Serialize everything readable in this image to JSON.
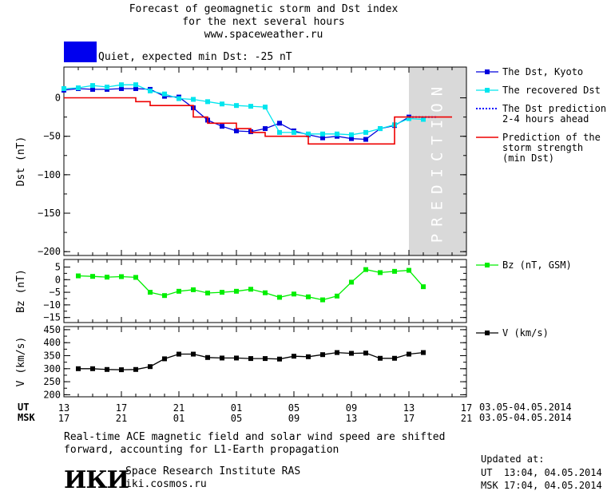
{
  "header": {
    "title_line1": "Forecast of geomagnetic storm and Dst index",
    "title_line2": "for the next several hours",
    "site": "www.spaceweather.ru",
    "status_text": "Quiet, expected min Dst: -25 nT",
    "status_color": "#0000ee"
  },
  "footer": {
    "note_line1": "Real-time ACE magnetic field and solar wind speed are shifted",
    "note_line2": "forward, accounting for L1-Earth propagation",
    "logo_text": "ИКИ",
    "institute": "Space Research Institute RAS",
    "institute_url": "iki.cosmos.ru",
    "updated_label": "Updated at:",
    "updated_ut": "UT  13:04, 04.05.2014",
    "updated_msk": "MSK 17:04, 04.05.2014"
  },
  "time_axis": {
    "ut_label": "UT",
    "msk_label": "MSK",
    "ut_ticks": [
      "13",
      "17",
      "21",
      "01",
      "05",
      "09",
      "13",
      "17"
    ],
    "msk_ticks": [
      "17",
      "21",
      "01",
      "05",
      "09",
      "13",
      "17",
      "21"
    ],
    "date_range": "03.05-04.05.2014",
    "hours_start": 0,
    "hours_end": 28
  },
  "chart_data": [
    {
      "type": "line",
      "panel": "dst",
      "ylabel": "Dst (nT)",
      "ylim": [
        -205,
        40
      ],
      "yticks": [
        0,
        -50,
        -100,
        -150,
        -200
      ],
      "prediction_label": "PREDICTION",
      "prediction_from_hour": 24,
      "series": [
        {
          "name": "The Dst, Kyoto",
          "color": "#0000dd",
          "marker": "square",
          "x": [
            0,
            1,
            2,
            3,
            4,
            5,
            6,
            7,
            8,
            9,
            10,
            11,
            12,
            13,
            14,
            15,
            16,
            17,
            18,
            19,
            20,
            21,
            22,
            23,
            24
          ],
          "y": [
            10,
            12,
            11,
            11,
            12,
            12,
            11,
            2,
            1,
            -13,
            -29,
            -37,
            -43,
            -44,
            -40,
            -33,
            -43,
            -48,
            -52,
            -50,
            -53,
            -54,
            -40,
            -36,
            -25
          ]
        },
        {
          "name": "The recovered Dst",
          "color": "#00e5ee",
          "marker": "square",
          "x": [
            0,
            1,
            2,
            3,
            4,
            5,
            6,
            7,
            8,
            9,
            10,
            11,
            12,
            13,
            14,
            15,
            16,
            17,
            18,
            19,
            20,
            21,
            22,
            23,
            24,
            25
          ],
          "y": [
            12,
            13,
            16,
            14,
            17,
            17,
            9,
            5,
            -1,
            -2,
            -5,
            -8,
            -10,
            -11,
            -12,
            -45,
            -45,
            -47,
            -47,
            -47,
            -48,
            -45,
            -40,
            -35,
            -27,
            -28
          ]
        },
        {
          "name": "The Dst prediction\n2-4 hours ahead",
          "color": "#0000ff",
          "style": "dotted",
          "x": [
            24,
            25,
            26
          ],
          "y": [
            -25,
            -25,
            -25
          ]
        },
        {
          "name": "Prediction of the\nstorm strength\n(min Dst)",
          "color": "#ee0000",
          "style": "step",
          "x": [
            0,
            4,
            5,
            6,
            8,
            9,
            10,
            12,
            13,
            14,
            15,
            17,
            20,
            21,
            22,
            23,
            24,
            27
          ],
          "y": [
            0,
            0,
            -5,
            -10,
            -10,
            -25,
            -33,
            -40,
            -45,
            -50,
            -50,
            -60,
            -60,
            -60,
            -60,
            -25,
            -25,
            -25
          ]
        }
      ]
    },
    {
      "type": "line",
      "panel": "bz",
      "ylabel": "Bz (nT)",
      "ylim": [
        -17,
        8
      ],
      "yticks": [
        5,
        0,
        -5,
        -10,
        -15
      ],
      "series": [
        {
          "name": "Bz (nT, GSM)",
          "color": "#00ee00",
          "marker": "square",
          "x": [
            1,
            2,
            3,
            4,
            5,
            6,
            7,
            8,
            9,
            10,
            11,
            12,
            13,
            14,
            15,
            16,
            17,
            18,
            19,
            20,
            21,
            22,
            23,
            24,
            25
          ],
          "y": [
            1.5,
            1.3,
            1,
            1.2,
            0.9,
            -5,
            -6.3,
            -4.6,
            -4,
            -5.3,
            -5,
            -4.6,
            -3.8,
            -5.2,
            -7,
            -5.7,
            -6.8,
            -8,
            -6.5,
            -1,
            4,
            2.8,
            3.3,
            3.7,
            -2.8
          ]
        }
      ]
    },
    {
      "type": "line",
      "panel": "v",
      "ylabel": "V (km/s)",
      "ylim": [
        192,
        462
      ],
      "yticks": [
        450,
        400,
        350,
        300,
        250,
        200
      ],
      "series": [
        {
          "name": "V (km/s)",
          "color": "#000000",
          "marker": "square",
          "x": [
            1,
            2,
            3,
            4,
            5,
            6,
            7,
            8,
            9,
            10,
            11,
            12,
            13,
            14,
            15,
            16,
            17,
            18,
            19,
            20,
            21,
            22,
            23,
            24,
            25
          ],
          "y": [
            300,
            300,
            297,
            296,
            297,
            308,
            338,
            356,
            356,
            343,
            341,
            341,
            339,
            339,
            337,
            348,
            346,
            354,
            362,
            359,
            360,
            340,
            340,
            356,
            362
          ]
        }
      ]
    }
  ]
}
